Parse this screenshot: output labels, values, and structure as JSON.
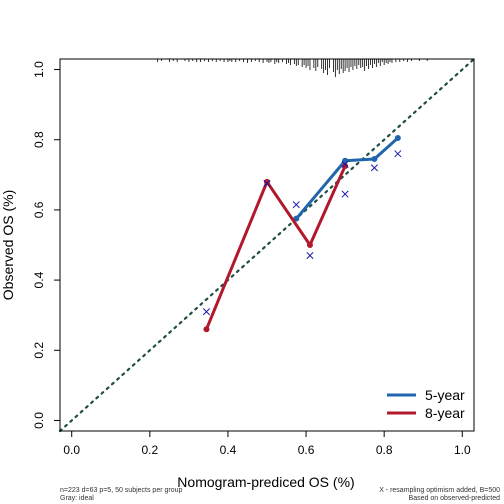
{
  "chart_data": {
    "type": "line",
    "xlabel": "Nomogram-prediced OS (%)",
    "ylabel": "Observed OS (%)",
    "xlim": [
      -0.03,
      1.03
    ],
    "ylim": [
      -0.03,
      1.03
    ],
    "xticks": [
      "0.0",
      "0.2",
      "0.4",
      "0.6",
      "0.8",
      "1.0"
    ],
    "yticks": [
      "0.0",
      "0.2",
      "0.4",
      "0.6",
      "0.8",
      "1.0"
    ],
    "tick_values": [
      0,
      0.2,
      0.4,
      0.6,
      0.8,
      1.0
    ],
    "ideal_line": {
      "x": [
        -0.03,
        1.03
      ],
      "y": [
        -0.03,
        1.03
      ],
      "color": "#1f4e46",
      "style": "dotted"
    },
    "legend_position": "bottom-right",
    "series": [
      {
        "name": "5-year",
        "color": "#2166ac",
        "x": [
          0.575,
          0.7,
          0.775,
          0.835
        ],
        "y": [
          0.575,
          0.74,
          0.745,
          0.805
        ],
        "bias_corrected_x": [
          0.575,
          0.7,
          0.775,
          0.835
        ],
        "bias_corrected_y": [
          0.615,
          0.645,
          0.72,
          0.76
        ]
      },
      {
        "name": "8-year",
        "color": "#b2182b",
        "x": [
          0.345,
          0.5,
          0.61,
          0.7
        ],
        "y": [
          0.26,
          0.68,
          0.5,
          0.725
        ],
        "bias_corrected_x": [
          0.345,
          0.5,
          0.61,
          0.7
        ],
        "bias_corrected_y": [
          0.31,
          0.675,
          0.47,
          0.73
        ]
      }
    ],
    "rug_x": [
      0.22,
      0.23,
      0.25,
      0.26,
      0.27,
      0.29,
      0.3,
      0.31,
      0.32,
      0.33,
      0.34,
      0.35,
      0.36,
      0.37,
      0.38,
      0.39,
      0.4,
      0.405,
      0.41,
      0.42,
      0.43,
      0.44,
      0.45,
      0.46,
      0.47,
      0.48,
      0.49,
      0.5,
      0.505,
      0.51,
      0.52,
      0.525,
      0.53,
      0.54,
      0.55,
      0.555,
      0.56,
      0.57,
      0.575,
      0.58,
      0.59,
      0.595,
      0.6,
      0.605,
      0.61,
      0.62,
      0.625,
      0.63,
      0.64,
      0.645,
      0.65,
      0.655,
      0.66,
      0.67,
      0.675,
      0.68,
      0.685,
      0.69,
      0.695,
      0.7,
      0.705,
      0.71,
      0.715,
      0.72,
      0.725,
      0.73,
      0.735,
      0.74,
      0.745,
      0.75,
      0.755,
      0.76,
      0.765,
      0.77,
      0.775,
      0.78,
      0.785,
      0.79,
      0.795,
      0.8,
      0.805,
      0.81,
      0.815,
      0.82,
      0.83,
      0.84,
      0.85,
      0.86,
      0.87,
      0.89,
      0.91
    ],
    "rug_h": [
      3,
      2,
      3,
      2,
      3,
      2,
      3,
      2,
      3,
      3,
      2,
      3,
      2,
      3,
      2,
      3,
      3,
      2,
      3,
      3,
      2,
      3,
      4,
      3,
      2,
      3,
      4,
      3,
      4,
      3,
      5,
      3,
      4,
      3,
      5,
      4,
      6,
      5,
      7,
      6,
      8,
      6,
      9,
      7,
      11,
      9,
      12,
      8,
      10,
      14,
      11,
      16,
      9,
      13,
      18,
      11,
      15,
      10,
      14,
      12,
      9,
      13,
      8,
      11,
      7,
      10,
      6,
      9,
      8,
      12,
      7,
      10,
      6,
      9,
      5,
      8,
      4,
      7,
      3,
      6,
      4,
      5,
      3,
      4,
      3,
      3,
      2,
      3,
      2,
      2,
      2
    ],
    "footnotes": {
      "left_line1": "n=223 d=63 p=5, 50 subjects per group",
      "left_line2": "Gray: ideal",
      "right_line1": "X - resampling optimism added, B=500",
      "right_line2": "Based on observed-predicted"
    }
  }
}
